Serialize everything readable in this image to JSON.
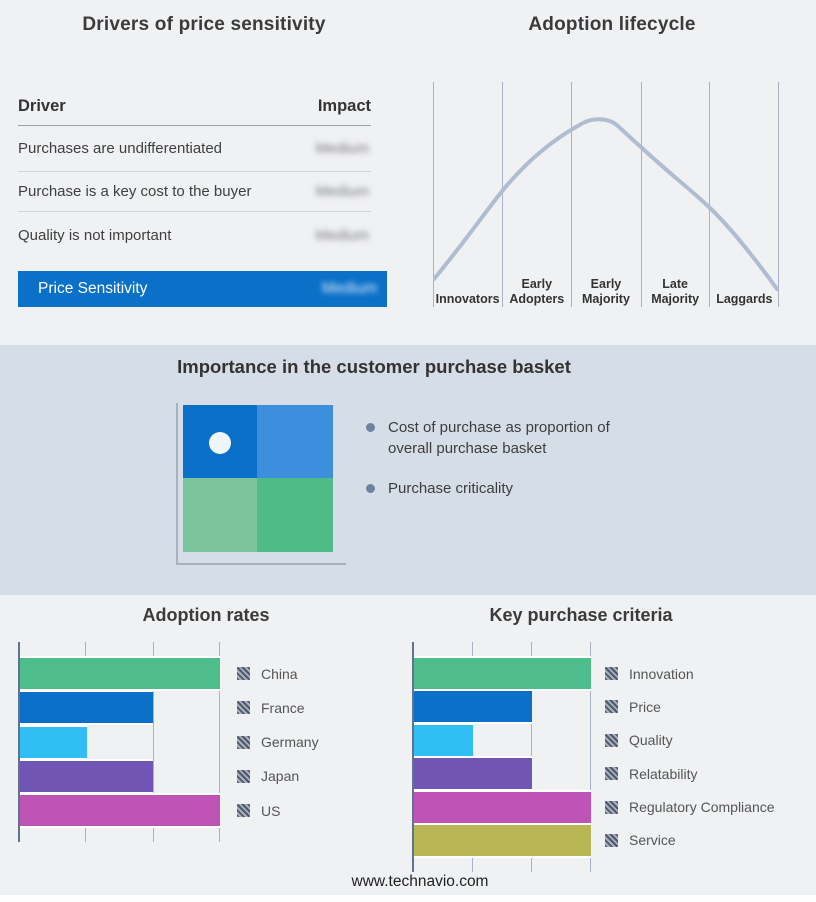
{
  "drivers": {
    "title": "Drivers of price sensitivity",
    "columns": {
      "driver": "Driver",
      "impact": "Impact"
    },
    "rows": [
      {
        "driver": "Purchases are undifferentiated",
        "impact": "Medium"
      },
      {
        "driver": "Purchase is a key cost to the buyer",
        "impact": "Medium"
      },
      {
        "driver": "Quality is not important",
        "impact": "Medium"
      }
    ],
    "summary_row": {
      "driver": "Price Sensitivity",
      "impact": "Medium"
    },
    "highlight_color": "#0a70c8"
  },
  "basket": {
    "title": "Importance in the customer purchase basket",
    "bullets": [
      "Cost of purchase as proportion of overall purchase basket",
      "Purchase criticality"
    ],
    "quadrant": {
      "top_left": "#0b70c7",
      "top_right": "#3e8ede",
      "bottom_left": "#7cc49c",
      "bottom_right": "#4fbb86",
      "marker_quadrant": "top_left"
    },
    "band_color": "#d5dde6"
  },
  "footer": "www.technavio.com",
  "chart_data": [
    {
      "id": "adoption-rates",
      "type": "bar",
      "title": "Adoption rates",
      "orientation": "horizontal",
      "categories": [
        "China",
        "France",
        "Germany",
        "Japan",
        "US"
      ],
      "values": [
        3,
        2,
        1,
        2,
        3
      ],
      "colors": [
        "#4fbc8c",
        "#0a70c8",
        "#30bff5",
        "#7055b5",
        "#bd54b6"
      ],
      "xlim": [
        0,
        3
      ],
      "grid": true,
      "legend_position": "right"
    },
    {
      "id": "key-purchase-criteria",
      "type": "bar",
      "title": "Key purchase criteria",
      "orientation": "horizontal",
      "categories": [
        "Innovation",
        "Price",
        "Quality",
        "Relatability",
        "Regulatory Compliance",
        "Service"
      ],
      "values": [
        3,
        2,
        1,
        2,
        3,
        3
      ],
      "colors": [
        "#4fbc8c",
        "#0a70c8",
        "#30bff5",
        "#7055b5",
        "#bd54b6",
        "#b9b656"
      ],
      "xlim": [
        0,
        3
      ],
      "grid": true,
      "legend_position": "right"
    },
    {
      "id": "adoption-lifecycle",
      "type": "line",
      "title": "Adoption lifecycle",
      "categories": [
        "Innovators",
        "Early Adopters",
        "Early Majority",
        "Late Majority",
        "Laggards"
      ],
      "shape": "bell curve peaking at Early Majority",
      "color": "#aebdd0"
    }
  ]
}
